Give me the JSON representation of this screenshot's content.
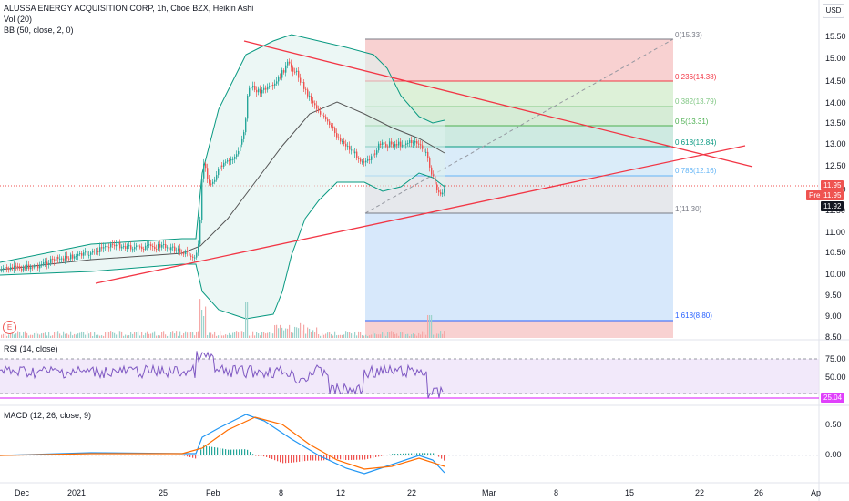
{
  "header": {
    "title": "ALUSSA ENERGY ACQUISITION CORP, 1h, Cboe BZX, Heikin Ashi",
    "vol": "Vol (20)",
    "bb": "BB (50, close, 2, 0)",
    "currency": "USD"
  },
  "price_axis": [
    "15.50",
    "15.00",
    "14.50",
    "14.00",
    "13.50",
    "13.00",
    "12.50",
    "12.00",
    "11.50",
    "11.00",
    "10.50",
    "10.00",
    "9.50",
    "9.00",
    "8.50"
  ],
  "price_badges": {
    "last": "11.95",
    "pre_label": "Pre",
    "pre_value": "11.95",
    "close": "11.92"
  },
  "fib_levels": [
    {
      "label": "0(15.33)",
      "color": "#787b86"
    },
    {
      "label": "0.236(14.38)",
      "color": "#f23645"
    },
    {
      "label": "0.382(13.79)",
      "color": "#81c784"
    },
    {
      "label": "0.5(13.31)",
      "color": "#4caf50"
    },
    {
      "label": "0.618(12.84)",
      "color": "#089981"
    },
    {
      "label": "0.786(12.16)",
      "color": "#64b5f6"
    },
    {
      "label": "1(11.30)",
      "color": "#787b86"
    },
    {
      "label": "1.618(8.80)",
      "color": "#2962ff"
    }
  ],
  "earnings_marker": "E",
  "rsi": {
    "title": "RSI (14, close)",
    "axis": [
      "75.00",
      "50.00"
    ],
    "value": "25.04"
  },
  "macd": {
    "title": "MACD (12, 26, close, 9)",
    "axis": [
      "0.50",
      "0.00"
    ]
  },
  "time_axis": [
    "Dec",
    "2021",
    "25",
    "Feb",
    "8",
    "12",
    "22",
    "Mar",
    "8",
    "15",
    "22",
    "26",
    "Ap"
  ],
  "colors": {
    "up": "#26a69a",
    "down": "#ef5350",
    "rsi": "#7e57c2",
    "macd": "#2196f3",
    "signal": "#ff6d00",
    "trend": "#f23645"
  }
}
